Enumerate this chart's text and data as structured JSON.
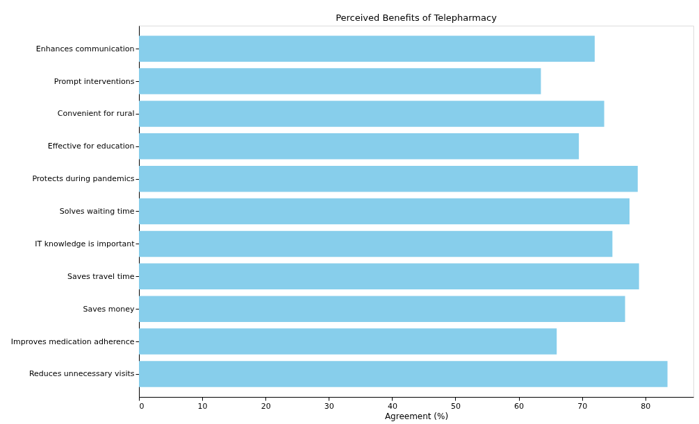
{
  "chart_data": {
    "type": "bar",
    "orientation": "horizontal",
    "title": "Perceived Benefits of Telepharmacy",
    "xlabel": "Agreement (%)",
    "categories": [
      "Enhances communication",
      "Prompt interventions",
      "Convenient for rural",
      "Effective for education",
      "Protects during pandemics",
      "Solves waiting time",
      "IT knowledge is important",
      "Saves travel time",
      "Saves money",
      "Improves medication adherence",
      "Reduces unnecessary visits"
    ],
    "values": [
      72.0,
      63.5,
      73.5,
      69.5,
      78.8,
      77.5,
      74.8,
      79.0,
      76.8,
      66.0,
      83.5
    ],
    "color": "#87ceeb",
    "xlim": [
      0,
      87.6
    ],
    "xticks": [
      0,
      10,
      20,
      30,
      40,
      50,
      60,
      70,
      80
    ],
    "grid": false
  }
}
